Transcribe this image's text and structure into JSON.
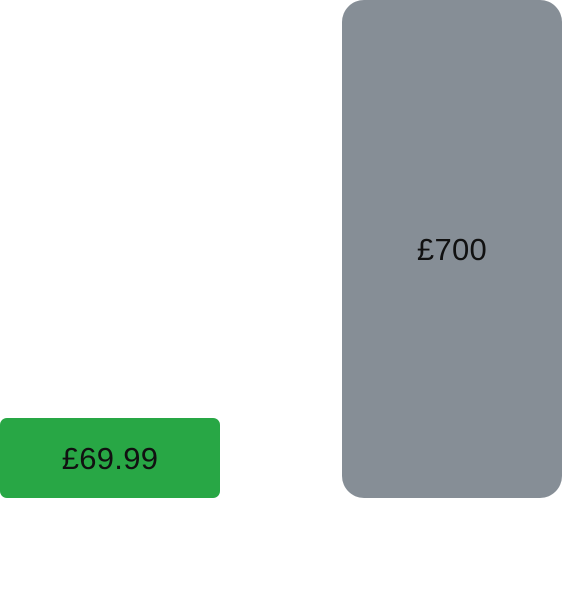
{
  "cards": {
    "basic": {
      "price_label": "£69.99",
      "color": "#28a745"
    },
    "premium": {
      "price_label": "£700",
      "color": "#868e96"
    }
  }
}
